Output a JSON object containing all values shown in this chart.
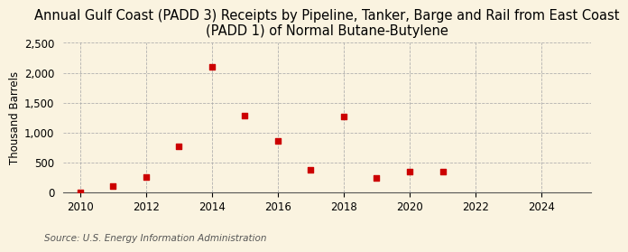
{
  "title": "Annual Gulf Coast (PADD 3) Receipts by Pipeline, Tanker, Barge and Rail from East Coast\n(PADD 1) of Normal Butane-Butylene",
  "ylabel": "Thousand Barrels",
  "source": "Source: U.S. Energy Information Administration",
  "years": [
    2010,
    2011,
    2012,
    2013,
    2014,
    2015,
    2016,
    2017,
    2018,
    2019,
    2020,
    2021
  ],
  "values": [
    0,
    100,
    255,
    775,
    2100,
    1280,
    855,
    370,
    1260,
    235,
    345,
    340
  ],
  "marker_color": "#cc0000",
  "marker_size": 25,
  "xlim": [
    2009.5,
    2025.5
  ],
  "ylim": [
    0,
    2500
  ],
  "yticks": [
    0,
    500,
    1000,
    1500,
    2000,
    2500
  ],
  "xticks": [
    2010,
    2012,
    2014,
    2016,
    2018,
    2020,
    2022,
    2024
  ],
  "background_color": "#faf3e0",
  "grid_color": "#aaaaaa",
  "title_fontsize": 10.5,
  "label_fontsize": 8.5,
  "tick_fontsize": 8.5,
  "source_fontsize": 7.5
}
